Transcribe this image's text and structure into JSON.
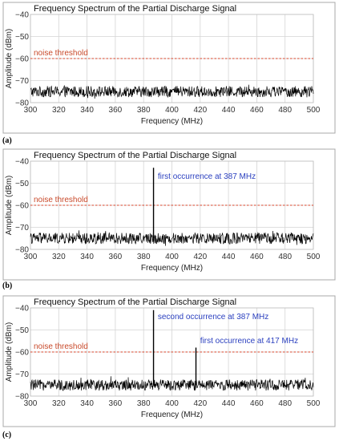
{
  "chart_data": [
    {
      "type": "line",
      "panel_label": "(a)",
      "title": "Frequency Spectrum of the Partial Discharge Signal",
      "xlabel": "Frequency (MHz)",
      "ylabel": "Amplitude (dBm)",
      "xlim": [
        300,
        500
      ],
      "ylim": [
        -80,
        -40
      ],
      "xticks": [
        "300",
        "320",
        "340",
        "360",
        "380",
        "400",
        "420",
        "440",
        "460",
        "480",
        "500"
      ],
      "yticks": [
        "−40",
        "−50",
        "−60",
        "−70",
        "−80"
      ],
      "grid": true,
      "noise_threshold": {
        "label": "noise threshold",
        "y": -60,
        "color": "#d9442b"
      },
      "noise_floor": {
        "mean": -75,
        "spread": 2.5
      },
      "peaks": [],
      "annotations": []
    },
    {
      "type": "line",
      "panel_label": "(b)",
      "title": "Frequency Spectrum of the Partial Discharge Signal",
      "xlabel": "Frequency (MHz)",
      "ylabel": "Amplitude (dBm)",
      "xlim": [
        300,
        500
      ],
      "ylim": [
        -80,
        -40
      ],
      "xticks": [
        "300",
        "320",
        "340",
        "360",
        "380",
        "400",
        "420",
        "440",
        "460",
        "480",
        "500"
      ],
      "yticks": [
        "−40",
        "−50",
        "−60",
        "−70",
        "−80"
      ],
      "grid": true,
      "noise_threshold": {
        "label": "noise threshold",
        "y": -60,
        "color": "#d9442b"
      },
      "noise_floor": {
        "mean": -75,
        "spread": 2.5
      },
      "peaks": [
        {
          "x": 387,
          "y": -43
        }
      ],
      "annotations": [
        {
          "text": "first occurrence at 387 MHz",
          "x": 390,
          "y": -48
        }
      ]
    },
    {
      "type": "line",
      "panel_label": "(c)",
      "title": "Frequency Spectrum of the Partial Discharge Signal",
      "xlabel": "Frequency (MHz)",
      "ylabel": "Amplitude (dBm)",
      "xlim": [
        300,
        500
      ],
      "ylim": [
        -80,
        -40
      ],
      "xticks": [
        "300",
        "320",
        "340",
        "360",
        "380",
        "400",
        "420",
        "440",
        "460",
        "480",
        "500"
      ],
      "yticks": [
        "−40",
        "−50",
        "−60",
        "−70",
        "−80"
      ],
      "grid": true,
      "noise_threshold": {
        "label": "noise threshold",
        "y": -60,
        "color": "#d9442b"
      },
      "noise_floor": {
        "mean": -75,
        "spread": 2.5
      },
      "peaks": [
        {
          "x": 387,
          "y": -41
        },
        {
          "x": 417,
          "y": -58
        }
      ],
      "annotations": [
        {
          "text": "second occurrence at 387 MHz",
          "x": 390,
          "y": -45
        },
        {
          "text": "first occurrence at 417 MHz",
          "x": 420,
          "y": -56
        }
      ]
    }
  ],
  "colors": {
    "signal": "#000000",
    "grid": "#d4d4d4",
    "frame": "#a8a8a8",
    "threshold": "#d9442b",
    "annotation": "#2a3fbf",
    "threshold_label": "#c8492a"
  }
}
